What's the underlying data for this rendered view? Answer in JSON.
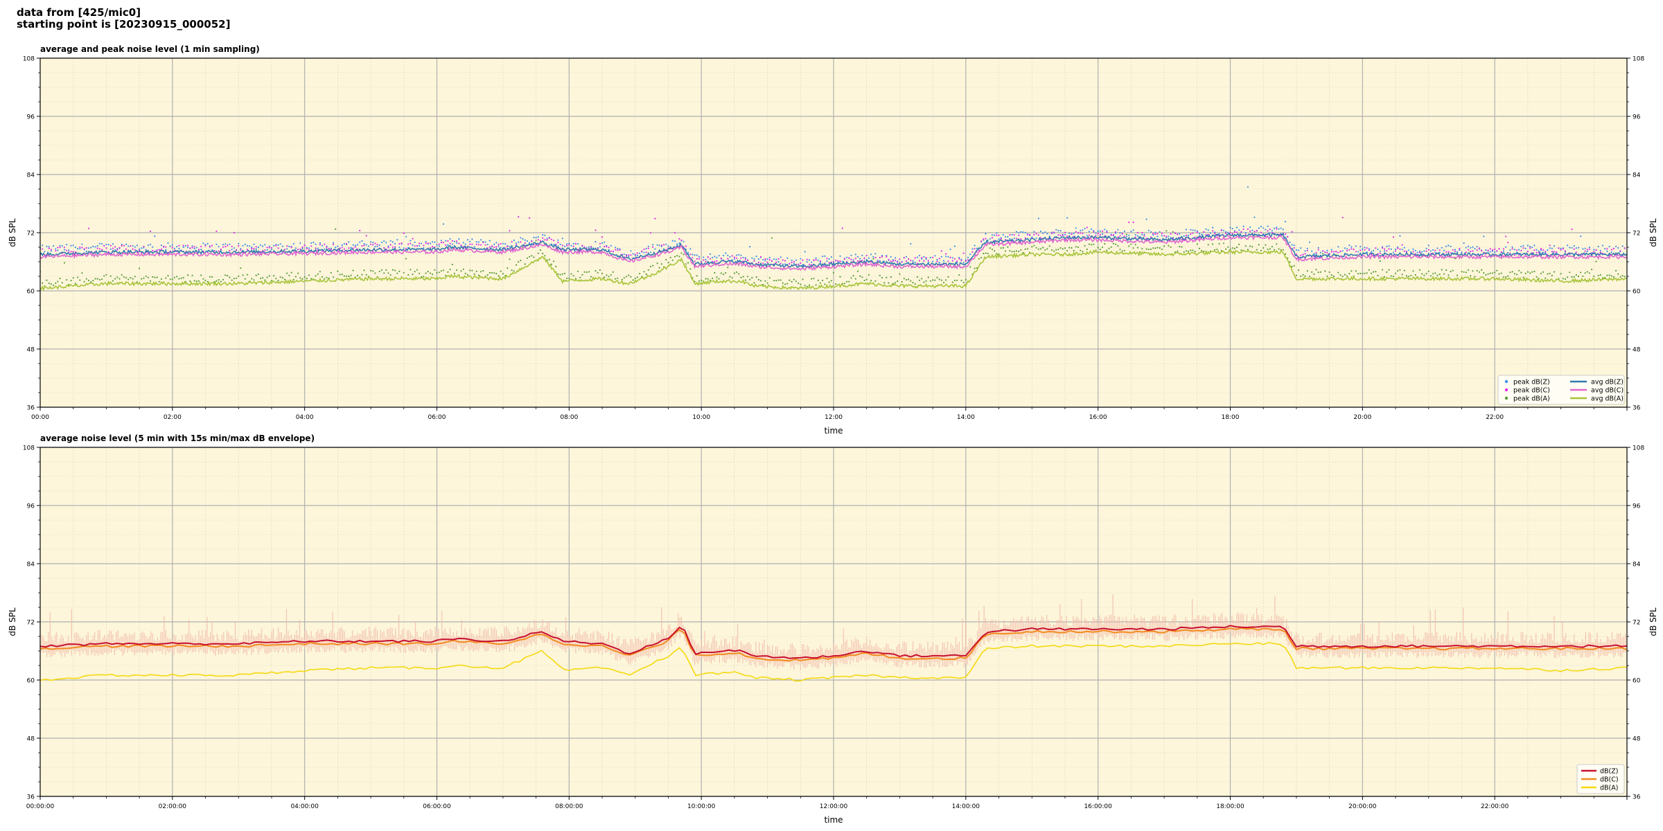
{
  "header": {
    "line1": "data from [425/mic0]",
    "line2": "starting point is [20230915_000052]"
  },
  "colors": {
    "plot_bg": "#fdf6da",
    "grid_major": "#b0b0b0",
    "grid_minor": "#d8d3c0",
    "peak_z": "#3d8ee8",
    "peak_c": "#e02be6",
    "peak_a": "#5a9c3c",
    "avg_z": "#2f79b0",
    "avg_c": "#e066cf",
    "avg_a": "#a8c43a",
    "env_z": "#c8102e",
    "env_c": "#f28b1e",
    "env_a": "#f5d90f",
    "env_fill": "#f3b7a8"
  },
  "chart_data": [
    {
      "type": "scatter",
      "title": "average and peak noise level (1 min sampling)",
      "xlabel": "time",
      "ylabel": "dB SPL",
      "xlim": [
        "00:00",
        "24:00"
      ],
      "ylim": [
        36,
        108
      ],
      "yticks": [
        36,
        48,
        60,
        72,
        84,
        96,
        108
      ],
      "xtick_labels": [
        "00:00",
        "02:00",
        "04:00",
        "06:00",
        "08:00",
        "10:00",
        "12:00",
        "14:00",
        "16:00",
        "18:00",
        "20:00",
        "22:00"
      ],
      "grid": true,
      "legend_position": "lower-right",
      "legend": [
        "peak dB(Z)",
        "peak dB(C)",
        "peak dB(A)",
        "avg dB(Z)",
        "avg dB(C)",
        "avg dB(A)"
      ],
      "x_hours": [
        0,
        1,
        2,
        3,
        4,
        5,
        6,
        6.2,
        7,
        7.6,
        7.9,
        8.5,
        8.9,
        9.2,
        9.5,
        9.7,
        9.9,
        10.3,
        10.6,
        10.8,
        11.5,
        12,
        12.5,
        13,
        13.5,
        14,
        14.3,
        15,
        15.5,
        16,
        17,
        18,
        18.8,
        19,
        20,
        21,
        22,
        23,
        24
      ],
      "series": [
        {
          "name": "avg dB(Z)",
          "values": [
            67.5,
            68,
            68,
            68,
            68.2,
            68.5,
            68.5,
            69,
            68.5,
            70,
            68.5,
            68.5,
            66.5,
            67.5,
            68.5,
            69.5,
            65.5,
            66,
            66,
            65.5,
            65,
            65.5,
            66,
            65.5,
            65.5,
            65.5,
            70,
            70.5,
            71,
            71,
            70.5,
            71.5,
            71.5,
            67,
            67.5,
            67.5,
            67.5,
            67.5,
            67.5
          ]
        },
        {
          "name": "avg dB(C)",
          "values": [
            67,
            67.5,
            67.5,
            67.5,
            67.7,
            68,
            68,
            68.5,
            68,
            69.5,
            68,
            68,
            66,
            67,
            68,
            69,
            65,
            65.5,
            65.5,
            65,
            64.5,
            65,
            65.5,
            65,
            65,
            65,
            69.5,
            70,
            70.5,
            70.5,
            70,
            71,
            71,
            66.5,
            67,
            67,
            67,
            67,
            67
          ]
        },
        {
          "name": "avg dB(A)",
          "values": [
            60.5,
            61.5,
            61.5,
            61.5,
            62,
            62.5,
            62.5,
            63,
            62.5,
            67,
            62,
            62.5,
            61.5,
            63,
            65,
            66.5,
            61.5,
            62,
            62,
            61,
            60.5,
            61,
            61.5,
            61,
            61,
            61,
            67,
            67.5,
            67.5,
            68,
            67.5,
            68,
            68,
            62.5,
            62.5,
            62.5,
            62.5,
            62,
            62.5
          ]
        }
      ]
    },
    {
      "type": "line",
      "title": "average noise level (5 min with 15s min/max dB envelope)",
      "xlabel": "time",
      "ylabel": "dB SPL",
      "xlim": [
        "00:00:00",
        "24:00:00"
      ],
      "ylim": [
        36,
        108
      ],
      "yticks": [
        36,
        48,
        60,
        72,
        84,
        96,
        108
      ],
      "xtick_labels": [
        "00:00:00",
        "02:00:00",
        "04:00:00",
        "06:00:00",
        "08:00:00",
        "10:00:00",
        "12:00:00",
        "14:00:00",
        "16:00:00",
        "18:00:00",
        "20:00:00",
        "22:00:00"
      ],
      "grid": true,
      "legend_position": "lower-right",
      "legend": [
        "dB(Z)",
        "dB(C)",
        "dB(A)"
      ],
      "x_hours": [
        0,
        1,
        2,
        3,
        4,
        5,
        6,
        6.2,
        7,
        7.6,
        7.9,
        8.5,
        8.9,
        9.2,
        9.5,
        9.7,
        9.9,
        10.3,
        10.6,
        10.8,
        11.5,
        12,
        12.5,
        13,
        13.5,
        14,
        14.3,
        15,
        15.5,
        16,
        17,
        18,
        18.8,
        19,
        20,
        21,
        22,
        23,
        24
      ],
      "series": [
        {
          "name": "dB(Z)",
          "values": [
            67,
            67.5,
            67.5,
            67.5,
            68,
            68,
            68,
            68.5,
            68,
            70,
            68,
            67.5,
            65.5,
            67,
            68.5,
            71.5,
            65.5,
            66,
            66,
            65,
            64.5,
            65,
            66,
            65,
            65,
            65,
            70,
            70.5,
            70.5,
            70.5,
            70.5,
            71,
            71,
            67,
            67,
            67,
            67,
            67,
            67
          ]
        },
        {
          "name": "dB(C)",
          "values": [
            66.5,
            67,
            67,
            67,
            67.5,
            67.5,
            67.5,
            68,
            67.5,
            69.5,
            67.5,
            67,
            65,
            66.5,
            68,
            71,
            65,
            65.5,
            65.5,
            64.5,
            64,
            64.5,
            65.5,
            64.5,
            64.5,
            64.5,
            69.5,
            70,
            70,
            70,
            70,
            70.5,
            70.5,
            66.5,
            66.5,
            66.5,
            66.5,
            66.5,
            66.5
          ]
        },
        {
          "name": "dB(A)",
          "values": [
            60,
            61,
            61,
            61,
            62,
            62.5,
            62.5,
            63,
            62.5,
            66,
            62,
            62.5,
            61,
            63,
            65,
            67,
            61,
            61.5,
            61.5,
            60.5,
            60,
            60.5,
            61,
            60.5,
            60.5,
            60.5,
            66.5,
            67,
            67,
            67,
            67,
            67.5,
            67.5,
            62.5,
            62.5,
            62.5,
            62.5,
            62,
            62.5
          ]
        }
      ]
    }
  ]
}
